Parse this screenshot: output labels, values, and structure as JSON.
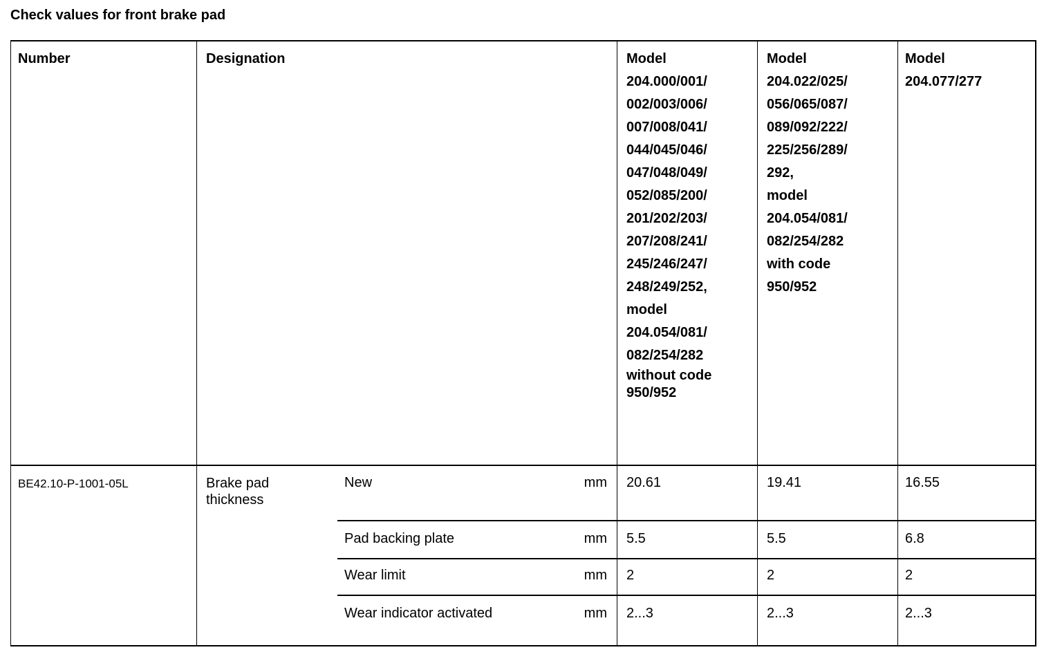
{
  "title": "Check values for front brake pad",
  "header": {
    "number": "Number",
    "designation": "Designation",
    "models": [
      [
        "Model",
        "204.000/001/",
        "002/003/006/",
        "007/008/041/",
        "044/045/046/",
        "047/048/049/",
        "052/085/200/",
        "201/202/203/",
        "207/208/241/",
        "245/246/247/",
        "248/249/252,",
        "model",
        "204.054/081/",
        "082/254/282",
        "without code",
        "950/952"
      ],
      [
        "Model",
        "204.022/025/",
        "056/065/087/",
        "089/092/222/",
        "225/256/289/",
        "292,",
        "model",
        "204.054/081/",
        "082/254/282",
        "with code",
        "950/952"
      ],
      [
        "Model",
        "204.077/277"
      ]
    ]
  },
  "row": {
    "number": "BE42.10-P-1001-05L",
    "designation": "Brake pad thickness",
    "subrows": [
      {
        "label": "New",
        "unit": "mm",
        "values": [
          "20.61",
          "19.41",
          "16.55"
        ]
      },
      {
        "label": "Pad backing plate",
        "unit": "mm",
        "values": [
          "5.5",
          "5.5",
          "6.8"
        ]
      },
      {
        "label": "Wear limit",
        "unit": "mm",
        "values": [
          "2",
          "2",
          "2"
        ]
      },
      {
        "label": "Wear indicator activated",
        "unit": "mm",
        "values": [
          "2...3",
          "2...3",
          "2...3"
        ]
      }
    ]
  }
}
